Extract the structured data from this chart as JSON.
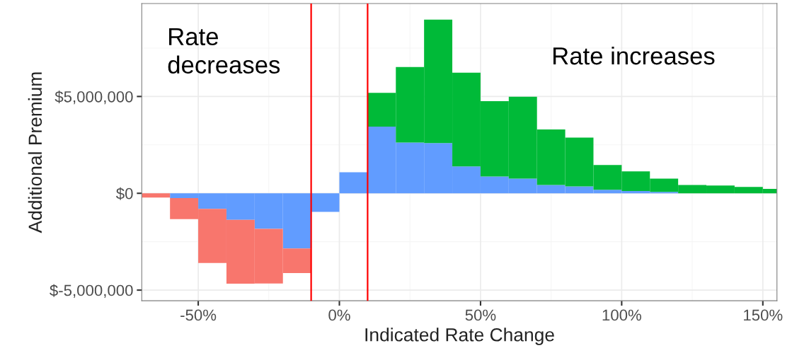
{
  "chart_data": {
    "type": "bar",
    "xlabel": "Indicated Rate Change",
    "ylabel": "Additional Premium",
    "x": [
      -65,
      -55,
      -45,
      -35,
      -25,
      -15,
      -5,
      5,
      15,
      25,
      35,
      45,
      55,
      65,
      75,
      85,
      95,
      105,
      115,
      125,
      135,
      145,
      155
    ],
    "stacked": true,
    "series": [
      {
        "color": "#619cff",
        "values": [
          0,
          -250000,
          -800000,
          -1370000,
          -1840000,
          -2850000,
          -960000,
          1090000,
          3440000,
          2620000,
          2590000,
          1390000,
          870000,
          760000,
          430000,
          360000,
          180000,
          120000,
          70000,
          null,
          null,
          null,
          null
        ]
      },
      {
        "color": "#f8766d",
        "values": [
          -220000,
          -1080000,
          -2800000,
          -3300000,
          -2820000,
          -1270000,
          null,
          null,
          null,
          null,
          null,
          null,
          null,
          null,
          null,
          null,
          null,
          null,
          null,
          null,
          null,
          null,
          null
        ]
      },
      {
        "color": "#00ba38",
        "values": [
          null,
          null,
          null,
          null,
          null,
          null,
          null,
          null,
          1750000,
          3900000,
          6380000,
          4840000,
          3890000,
          4230000,
          2870000,
          2520000,
          1280000,
          1010000,
          690000,
          430000,
          400000,
          330000,
          230000
        ]
      }
    ],
    "xlim": [
      -70,
      155
    ],
    "xticks": [
      {
        "value": -50,
        "label": "-50%"
      },
      {
        "value": 0,
        "label": "0%"
      },
      {
        "value": 50,
        "label": "50%"
      },
      {
        "value": 100,
        "label": "100%"
      },
      {
        "value": 150,
        "label": "150%"
      }
    ],
    "ylim": [
      -5550000,
      9800000
    ],
    "yticks": [
      {
        "value": -5000000,
        "label": "$-5,000,000"
      },
      {
        "value": 0,
        "label": "$0"
      },
      {
        "value": 5000000,
        "label": "$5,000,000"
      }
    ],
    "ref_lines": [
      {
        "axis": "x",
        "value": -10,
        "color": "#ff0000"
      },
      {
        "axis": "x",
        "value": 10,
        "color": "#ff0000"
      }
    ],
    "annotations": [
      "Rate\ndecreases",
      "Rate increases"
    ],
    "grid": true
  }
}
